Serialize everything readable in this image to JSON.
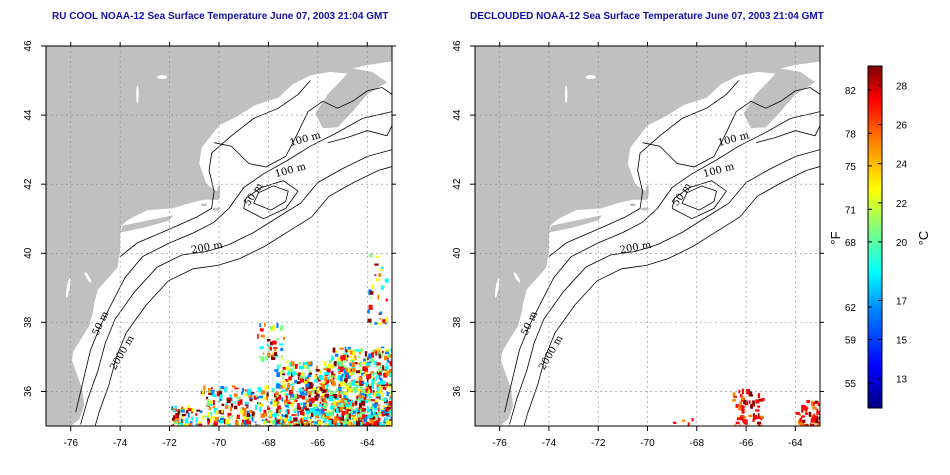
{
  "panels": [
    {
      "id": "left",
      "title": "RU COOL NOAA-12 Sea Surface Temperature June 07, 2003 21:04 GMT",
      "contour_labels": [
        "100 m",
        "100 m",
        "50 m",
        "200 m",
        "50 m",
        "2000 m"
      ],
      "data_coverage": "heavy"
    },
    {
      "id": "right",
      "title": "DECLOUDED NOAA-12 Sea Surface Temperature June 07, 2003 21:04 GMT",
      "contour_labels": [
        "100 m",
        "100 m",
        "50 m",
        "200 m",
        "50 m",
        "2000 m"
      ],
      "data_coverage": "sparse"
    }
  ],
  "map": {
    "lon_range": [
      -77,
      -63
    ],
    "lat_range": [
      35,
      46
    ],
    "lon_ticks": [
      "-76",
      "-74",
      "-72",
      "-70",
      "-68",
      "-66",
      "-64"
    ],
    "lat_ticks": [
      "36",
      "38",
      "40",
      "42",
      "44",
      "46"
    ],
    "land_color": "#c0c0c0",
    "ocean_color": "#ffffff",
    "grid": "dotted"
  },
  "colorbar": {
    "fahrenheit_ticks": [
      "82",
      "78",
      "75",
      "71",
      "68",
      "62",
      "59",
      "55"
    ],
    "celsius_ticks": [
      "28",
      "26",
      "24",
      "22",
      "20",
      "17",
      "15",
      "13"
    ],
    "fahrenheit_unit": "°F",
    "celsius_unit": "°C",
    "range_c": [
      11.5,
      29
    ],
    "colors": [
      "#00007f",
      "#0000ff",
      "#007fff",
      "#00ffff",
      "#7fff7f",
      "#ffff00",
      "#ff7f00",
      "#ff0000",
      "#7f0000"
    ]
  }
}
